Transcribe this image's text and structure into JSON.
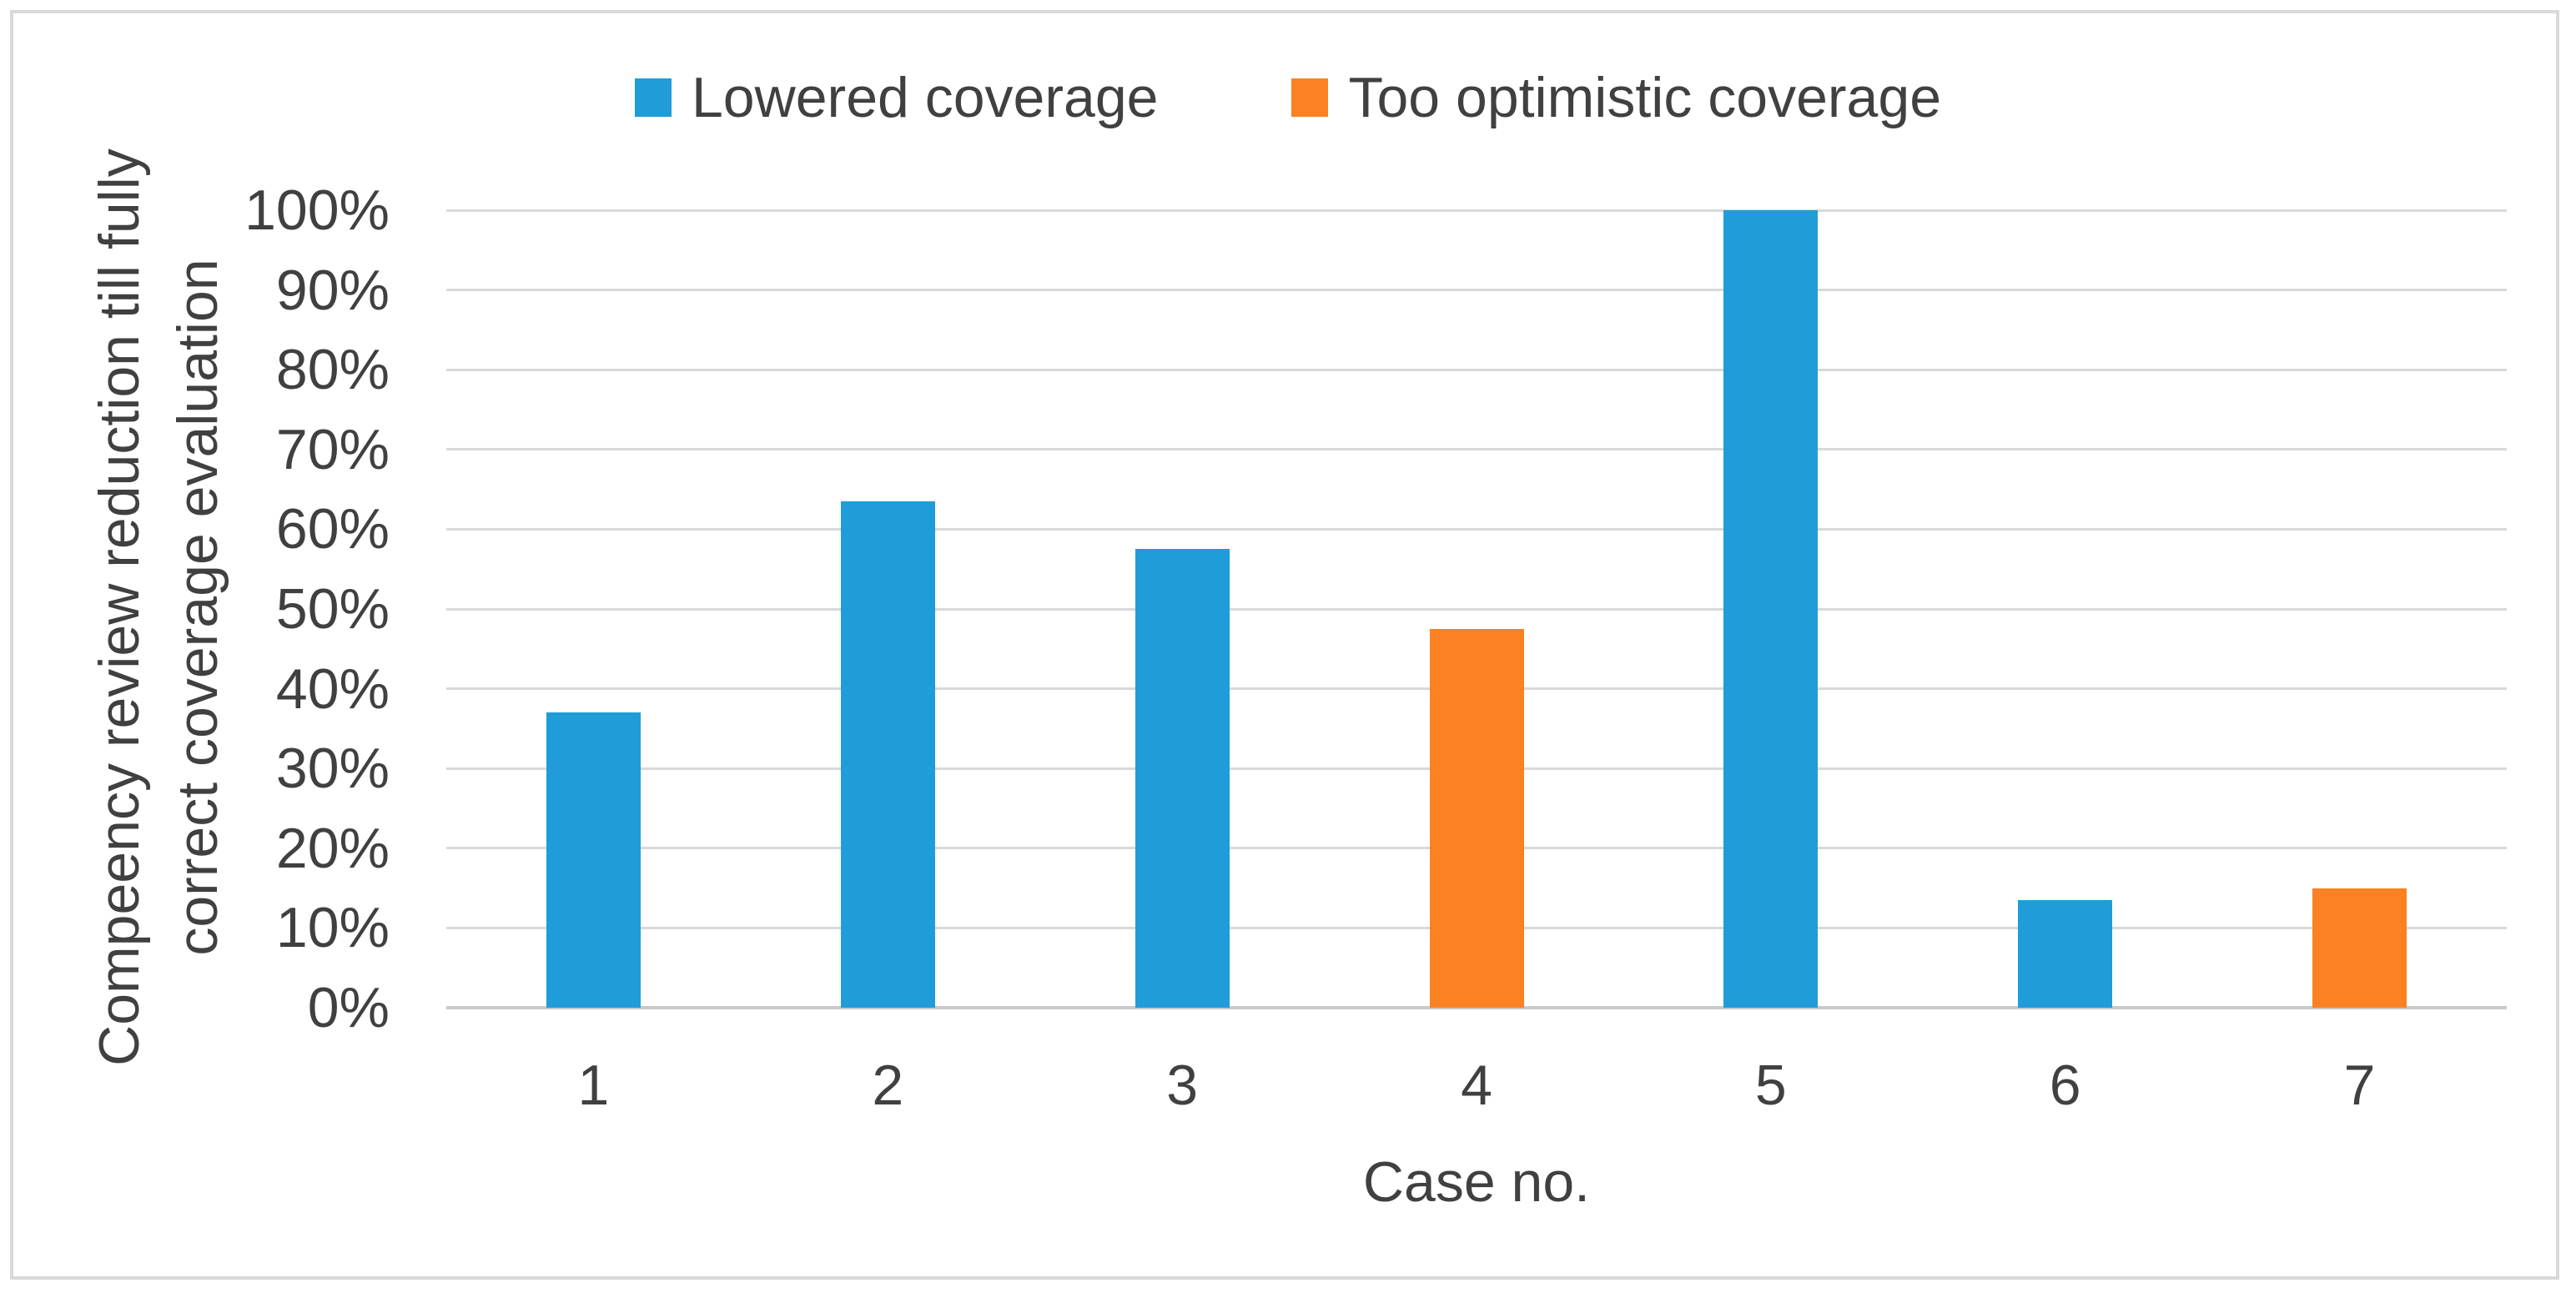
{
  "figure": {
    "background": "#ffffff",
    "border_color": "#d9d9d9",
    "text_color": "#404040"
  },
  "chart_data": {
    "type": "bar",
    "title": "",
    "categories": [
      "1",
      "2",
      "3",
      "4",
      "5",
      "6",
      "7"
    ],
    "series": [
      {
        "name": "Lowered coverage",
        "color": "#209cd8",
        "values": [
          37,
          63.5,
          57.5,
          null,
          100,
          13.5,
          null
        ]
      },
      {
        "name": "Too optimistic coverage",
        "color": "#fb8122",
        "values": [
          null,
          null,
          null,
          47.5,
          null,
          null,
          15
        ]
      }
    ],
    "xlabel": "Case no.",
    "ylabel": "Compeency review reduction till fully correct coverage evaluation",
    "ylabel_lines": [
      "Compeency review reduction till fully",
      "correct coverage evaluation"
    ],
    "ylim": [
      0,
      100
    ],
    "ytick_step": 10,
    "yticks": [
      "0%",
      "10%",
      "20%",
      "30%",
      "40%",
      "50%",
      "60%",
      "70%",
      "80%",
      "90%",
      "100%"
    ],
    "grid": "horizontal",
    "gridline_color": "#d9d9d9",
    "axis_line_color": "#c9c9c9",
    "legend_position": "top center"
  }
}
